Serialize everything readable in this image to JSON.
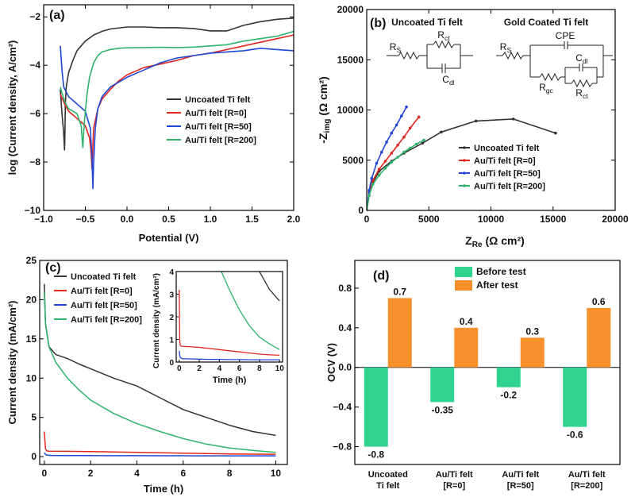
{
  "chart_data": [
    {
      "panel": "(a)",
      "type": "line",
      "xlabel": "Potential (V)",
      "ylabel": "log (Current density, A/cm²)",
      "xlim": [
        -1.0,
        2.0
      ],
      "ylim": [
        -10,
        -1.5
      ],
      "xticks": [
        -1.0,
        -0.5,
        0.0,
        0.5,
        1.0,
        1.5,
        2.0
      ],
      "xtick_labels": [
        "−1.0",
        "−0.5",
        "0.0",
        "0.5",
        "1.0",
        "1.5",
        "2.0"
      ],
      "yticks": [
        -10,
        -8,
        -6,
        -4,
        -2
      ],
      "ytick_labels": [
        "−10",
        "−8",
        "−6",
        "−4",
        "−2"
      ],
      "legend_position": "center-right",
      "series": [
        {
          "name": "Uncoated Ti felt",
          "color": "#333333",
          "x": [
            -0.8,
            -0.78,
            -0.76,
            -0.75,
            -0.745,
            -0.74,
            -0.73,
            -0.7,
            -0.65,
            -0.6,
            -0.5,
            -0.4,
            -0.3,
            -0.2,
            0.0,
            0.2,
            0.4,
            0.6,
            0.8,
            1.0,
            1.2,
            1.4,
            1.6,
            1.8,
            2.0
          ],
          "y": [
            -5.0,
            -6.0,
            -6.8,
            -7.5,
            -6.8,
            -5.6,
            -4.9,
            -4.3,
            -3.8,
            -3.4,
            -3.0,
            -2.75,
            -2.6,
            -2.5,
            -2.42,
            -2.42,
            -2.45,
            -2.45,
            -2.48,
            -2.58,
            -2.58,
            -2.35,
            -2.2,
            -2.1,
            -2.05
          ]
        },
        {
          "name": "Au/Ti felt [R=0]",
          "color": "#e0261f",
          "x": [
            -0.8,
            -0.75,
            -0.7,
            -0.6,
            -0.5,
            -0.45,
            -0.43,
            -0.42,
            -0.41,
            -0.4,
            -0.35,
            -0.3,
            -0.2,
            -0.1,
            0.0,
            0.2,
            0.4,
            0.6,
            0.8,
            1.0,
            1.2,
            1.4,
            1.6,
            1.8,
            2.0
          ],
          "y": [
            -5.2,
            -5.6,
            -5.9,
            -6.2,
            -6.5,
            -7.0,
            -7.6,
            -8.3,
            -7.4,
            -6.6,
            -5.8,
            -5.4,
            -5.0,
            -4.65,
            -4.4,
            -4.1,
            -3.95,
            -3.8,
            -3.6,
            -3.5,
            -3.35,
            -3.2,
            -3.05,
            -2.9,
            -2.75
          ]
        },
        {
          "name": "Au/Ti felt [R=50]",
          "color": "#2146d6",
          "x": [
            -0.8,
            -0.78,
            -0.76,
            -0.7,
            -0.6,
            -0.5,
            -0.44,
            -0.42,
            -0.41,
            -0.4,
            -0.38,
            -0.35,
            -0.3,
            -0.2,
            0.0,
            0.2,
            0.4,
            0.6,
            0.8,
            1.0,
            1.2,
            1.4,
            1.6,
            1.8,
            2.0
          ],
          "y": [
            -3.2,
            -4.2,
            -4.9,
            -5.3,
            -5.6,
            -5.9,
            -6.6,
            -7.8,
            -9.1,
            -8.0,
            -6.6,
            -5.8,
            -5.3,
            -4.9,
            -4.5,
            -4.2,
            -3.9,
            -3.7,
            -3.6,
            -3.5,
            -3.45,
            -3.4,
            -3.3,
            -3.35,
            -3.4
          ]
        },
        {
          "name": "Au/Ti felt [R=200]",
          "color": "#2fb36b",
          "x": [
            -0.8,
            -0.75,
            -0.7,
            -0.6,
            -0.55,
            -0.53,
            -0.52,
            -0.51,
            -0.5,
            -0.48,
            -0.45,
            -0.4,
            -0.35,
            -0.3,
            -0.2,
            -0.1,
            0.0,
            0.2,
            0.4,
            0.6,
            0.8,
            1.0,
            1.2,
            1.4,
            1.6,
            1.8,
            2.0
          ],
          "y": [
            -4.9,
            -5.5,
            -5.8,
            -6.0,
            -6.5,
            -7.4,
            -6.8,
            -6.3,
            -5.9,
            -5.2,
            -4.5,
            -3.9,
            -3.6,
            -3.45,
            -3.35,
            -3.3,
            -3.28,
            -3.27,
            -3.26,
            -3.27,
            -3.25,
            -3.2,
            -3.15,
            -3.0,
            -2.9,
            -2.8,
            -2.6
          ]
        }
      ]
    },
    {
      "panel": "(b)",
      "type": "line",
      "xlabel": "Z_Re (Ω cm²)",
      "ylabel": "-Z_img (Ω cm²)",
      "xlim": [
        0,
        20000
      ],
      "ylim": [
        0,
        20000
      ],
      "xticks": [
        0,
        5000,
        10000,
        15000,
        20000
      ],
      "yticks": [
        0,
        5000,
        10000,
        15000,
        20000
      ],
      "legend_position": "lower-right",
      "circuit_titles": [
        "Uncoated Ti felt",
        "Gold Coated Ti felt"
      ],
      "circuit1_labels": {
        "rs": "R",
        "rs_sub": "S",
        "rct": "R",
        "rct_sub": "ct",
        "cdl": "C",
        "cdl_sub": "dl"
      },
      "circuit2_labels": {
        "rs": "R",
        "rs_sub": "S",
        "cpe": "CPE",
        "cdl": "C",
        "cdl_sub": "dl",
        "rgc": "R",
        "rgc_sub": "gc",
        "rct": "R",
        "rct_sub": "ct"
      },
      "series": [
        {
          "name": "Uncoated Ti felt",
          "color": "#333333",
          "x": [
            0,
            200,
            500,
            1000,
            2000,
            3000,
            4500,
            6000,
            8800,
            11800,
            15200
          ],
          "y": [
            0,
            1500,
            2800,
            3900,
            4900,
            5700,
            6700,
            7800,
            8900,
            9100,
            7700
          ]
        },
        {
          "name": "Au/Ti felt [R=0]",
          "color": "#e0261f",
          "x": [
            0,
            200,
            500,
            1000,
            1500,
            2000,
            2500,
            3000,
            3500,
            4200
          ],
          "y": [
            0,
            1800,
            3000,
            4100,
            4900,
            5700,
            6500,
            7300,
            8200,
            9300
          ]
        },
        {
          "name": "Au/Ti felt [R=50]",
          "color": "#2146d6",
          "x": [
            0,
            200,
            400,
            800,
            1200,
            1600,
            2000,
            2400,
            2800,
            3200
          ],
          "y": [
            0,
            2000,
            3200,
            4700,
            5800,
            6800,
            7700,
            8500,
            9400,
            10300
          ]
        },
        {
          "name": "Au/Ti felt [R=200]",
          "color": "#2fb36b",
          "x": [
            0,
            200,
            500,
            1000,
            1500,
            2000,
            2500,
            3000,
            3500,
            4000,
            4600
          ],
          "y": [
            0,
            1500,
            2600,
            3500,
            4200,
            4800,
            5300,
            5800,
            6200,
            6600,
            7000
          ]
        }
      ]
    },
    {
      "panel": "(c)",
      "type": "line",
      "xlabel": "Time (h)",
      "ylabel": "Current density (mA/cm²)",
      "xlim": [
        -0.2,
        10.5
      ],
      "ylim": [
        -1,
        25
      ],
      "xticks": [
        0,
        2,
        4,
        6,
        8,
        10
      ],
      "yticks": [
        0,
        5,
        10,
        15,
        20,
        25
      ],
      "legend_position": "top-left",
      "inset": {
        "xlabel": "Time (h)",
        "ylabel": "Current density (mA/cm²)",
        "xlim": [
          -0.3,
          10.3
        ],
        "ylim": [
          0,
          4
        ],
        "xticks": [
          0,
          2,
          4,
          6,
          8,
          10
        ],
        "yticks": [
          0,
          1,
          2,
          3,
          4
        ]
      },
      "series": [
        {
          "name": "Uncoated Ti felt",
          "color": "#333333",
          "x": [
            0,
            0.05,
            0.2,
            0.5,
            1,
            1.5,
            2,
            3,
            4,
            5,
            6,
            7,
            8,
            9,
            10
          ],
          "y": [
            22,
            17,
            14,
            13,
            12.5,
            11.8,
            11.2,
            10,
            9,
            7.5,
            6,
            5,
            4,
            3.2,
            2.7
          ]
        },
        {
          "name": "Au/Ti felt [R=0]",
          "color": "#e0261f",
          "x": [
            0,
            0.05,
            0.1,
            0.2,
            1,
            2,
            3,
            4,
            5,
            6,
            7,
            8,
            9,
            10
          ],
          "y": [
            3.2,
            1.0,
            0.75,
            0.7,
            0.68,
            0.65,
            0.6,
            0.55,
            0.5,
            0.45,
            0.4,
            0.35,
            0.32,
            0.3
          ]
        },
        {
          "name": "Au/Ti felt [R=50]",
          "color": "#2146d6",
          "x": [
            0,
            0.05,
            0.1,
            0.3,
            1,
            2,
            3,
            4,
            5,
            6,
            7,
            8,
            9,
            10
          ],
          "y": [
            0.5,
            0.3,
            0.2,
            0.15,
            0.14,
            0.13,
            0.12,
            0.12,
            0.11,
            0.11,
            0.1,
            0.1,
            0.1,
            0.1
          ]
        },
        {
          "name": "Au/Ti felt [R=200]",
          "color": "#2fb36b",
          "x": [
            0,
            0.05,
            0.2,
            0.5,
            1,
            1.5,
            2,
            3,
            4,
            5,
            6,
            7,
            8,
            9,
            10
          ],
          "y": [
            21,
            17,
            14,
            12,
            10,
            8.5,
            7.2,
            5.5,
            4.2,
            3.2,
            2.3,
            1.6,
            1.1,
            0.8,
            0.55
          ]
        }
      ]
    },
    {
      "panel": "(d)",
      "type": "bar",
      "ylabel": "OCV (V)",
      "ylim": [
        -0.98,
        1.08
      ],
      "yticks": [
        -0.8,
        -0.4,
        0.0,
        0.4,
        0.8
      ],
      "ytick_labels": [
        "−0.8",
        "−0.4",
        "0.0",
        "0.4",
        "0.8"
      ],
      "legend_position": "top-center",
      "categories": [
        [
          "Uncoated",
          "Ti felt"
        ],
        [
          "Au/Ti felt",
          "[R=0]"
        ],
        [
          "Au/Ti felt",
          "[R=50]"
        ],
        [
          "Au/Ti felt",
          "[R=200]"
        ]
      ],
      "series": [
        {
          "name": "Before test",
          "color": "#2fd28f",
          "values": [
            -0.8,
            -0.35,
            -0.2,
            -0.6
          ],
          "labels": [
            "-0.8",
            "-0.35",
            "-0.2",
            "-0.6"
          ]
        },
        {
          "name": "After test",
          "color": "#f8912d",
          "values": [
            0.7,
            0.4,
            0.3,
            0.6
          ],
          "labels": [
            "0.7",
            "0.4",
            "0.3",
            "0.6"
          ]
        }
      ]
    }
  ]
}
